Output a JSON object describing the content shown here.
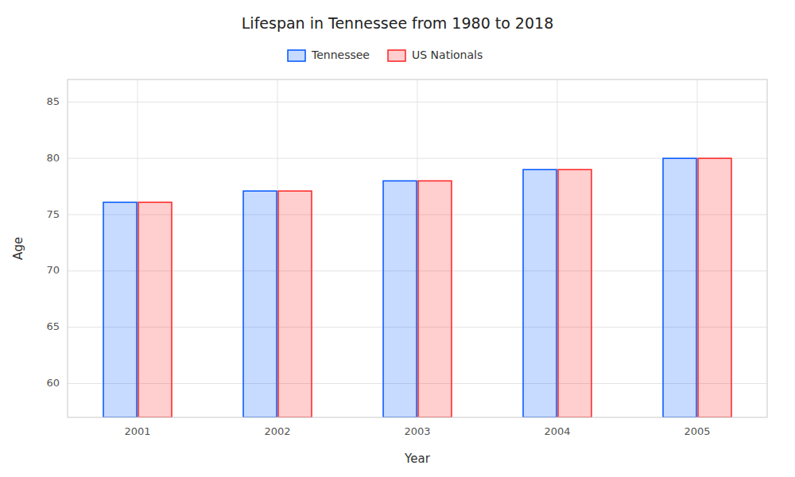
{
  "chart_data": {
    "type": "bar",
    "title": "Lifespan in Tennessee from 1980 to 2018",
    "x_label": "Year",
    "y_label": "Age",
    "categories": [
      "2001",
      "2002",
      "2003",
      "2004",
      "2005"
    ],
    "series": [
      {
        "name": "Tennessee",
        "color": "#0055ff",
        "values": [
          76.1,
          77.1,
          78.0,
          79.0,
          80.0
        ]
      },
      {
        "name": "US Nationals",
        "color": "#ff2222",
        "values": [
          76.1,
          77.1,
          78.0,
          79.0,
          80.0
        ]
      }
    ],
    "ylim": [
      57,
      87
    ],
    "yticks": [
      60,
      65,
      70,
      75,
      80,
      85
    ],
    "grid": true,
    "legend": "top"
  }
}
